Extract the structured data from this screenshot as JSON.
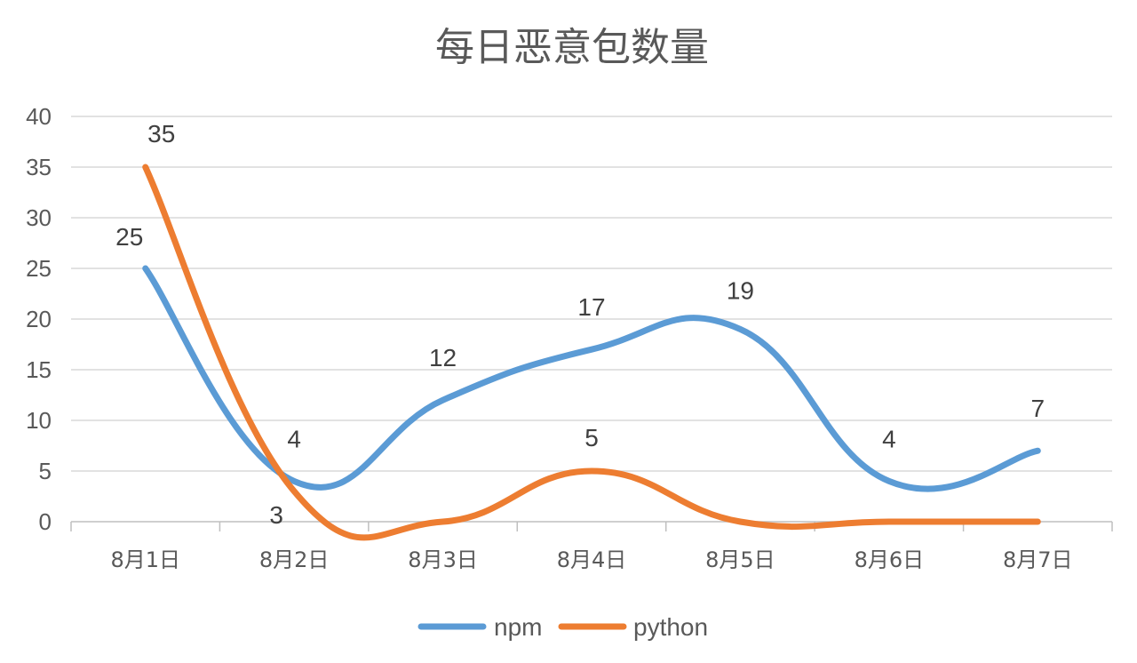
{
  "chart_data": {
    "type": "line",
    "title": "每日恶意包数量",
    "categories": [
      "8月1日",
      "8月2日",
      "8月3日",
      "8月4日",
      "8月5日",
      "8月6日",
      "8月7日"
    ],
    "series": [
      {
        "name": "npm",
        "color": "#5b9bd5",
        "values": [
          25,
          4,
          12,
          17,
          19,
          4,
          7
        ]
      },
      {
        "name": "python",
        "color": "#ed7d31",
        "values": [
          35,
          3,
          0,
          5,
          0,
          0,
          0
        ]
      }
    ],
    "ylim": [
      0,
      40
    ],
    "yticks": [
      "0",
      "5",
      "10",
      "15",
      "20",
      "25",
      "30",
      "35",
      "40"
    ],
    "data_labels": {
      "npm": [
        "25",
        "4",
        "12",
        "17",
        "19",
        "4",
        "7"
      ],
      "python": [
        "35",
        "3",
        "",
        "5",
        "",
        "",
        ""
      ]
    },
    "grid": true,
    "smooth": true,
    "legend": "bottom"
  }
}
